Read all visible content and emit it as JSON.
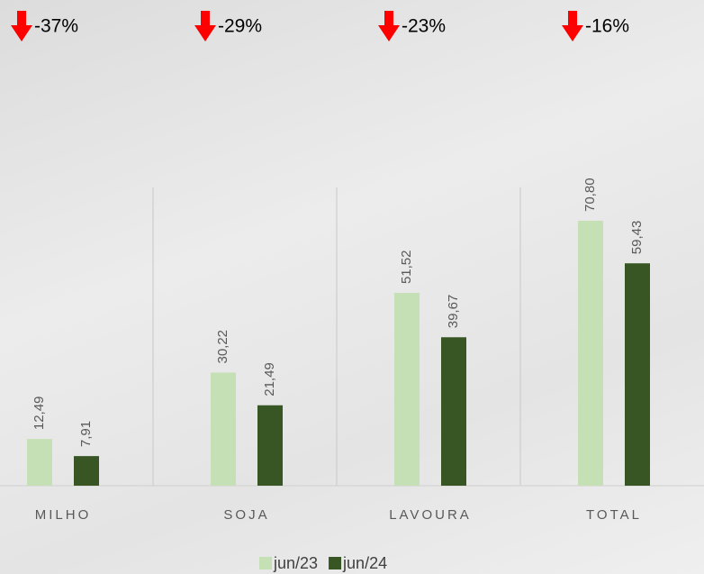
{
  "chart_data": {
    "type": "bar",
    "annotations": [
      "-37%",
      "-29%",
      "-23%",
      "-16%"
    ],
    "categories": [
      "MILHO",
      "SOJA",
      "LAVOURA",
      "TOTAL"
    ],
    "series": [
      {
        "name": "jun/23",
        "color": "#c5e0b4",
        "values": [
          12.49,
          30.22,
          51.52,
          70.8
        ],
        "value_labels": [
          "12,49",
          "30,22",
          "51,52",
          "70,80"
        ]
      },
      {
        "name": "jun/24",
        "color": "#375623",
        "values": [
          7.91,
          21.49,
          39.67,
          59.43
        ],
        "value_labels": [
          "7,91",
          "21,49",
          "39,67",
          "59,43"
        ]
      }
    ],
    "grid": false
  }
}
